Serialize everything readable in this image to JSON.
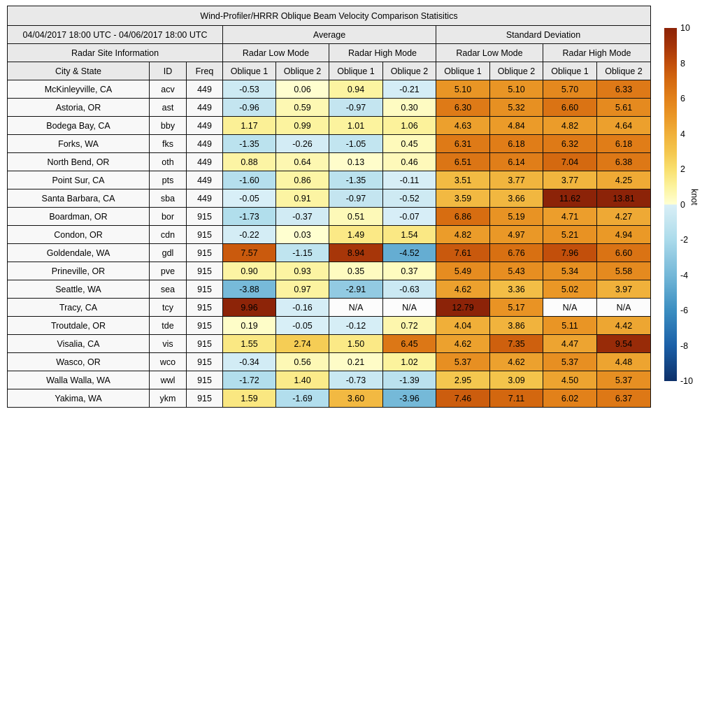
{
  "title": "Wind-Profiler/HRRR Oblique Beam Velocity Comparison Statisitics",
  "date_range": "04/04/2017 18:00 UTC - 04/06/2017 18:00 UTC",
  "headers": {
    "average": "Average",
    "standard_deviation": "Standard Deviation",
    "radar_site_information": "Radar Site Information",
    "radar_low_mode": "Radar Low Mode",
    "radar_high_mode": "Radar High Mode",
    "city_state": "City & State",
    "id": "ID",
    "freq": "Freq",
    "oblique1": "Oblique 1",
    "oblique2": "Oblique 2"
  },
  "colorbar": {
    "label": "knot",
    "min": -10,
    "max": 10,
    "ticks": [
      10,
      8,
      6,
      4,
      2,
      0,
      -2,
      -4,
      -6,
      -8,
      -10
    ],
    "gradient": [
      [
        -10,
        "#0d3069"
      ],
      [
        -8,
        "#1b60a8"
      ],
      [
        -6,
        "#3b8ec1"
      ],
      [
        -4,
        "#74b8d8"
      ],
      [
        -3,
        "#8fc8e1"
      ],
      [
        -2,
        "#abdbeb"
      ],
      [
        -1,
        "#c3e5f0"
      ],
      [
        -0.001,
        "#d9eff7"
      ],
      [
        0.001,
        "#ffffd2"
      ],
      [
        1,
        "#fcf39e"
      ],
      [
        2,
        "#f9df6d"
      ],
      [
        3,
        "#f4c64d"
      ],
      [
        4,
        "#f0b03a"
      ],
      [
        5,
        "#ea9726"
      ],
      [
        6,
        "#e2811a"
      ],
      [
        7,
        "#d56a10"
      ],
      [
        8,
        "#c14e0b"
      ],
      [
        9,
        "#a53409"
      ],
      [
        10,
        "#8c2308"
      ]
    ],
    "na_color": "#fcfcfc"
  },
  "chart_data": {
    "type": "heatmap",
    "title": "Wind-Profiler/HRRR Oblique Beam Velocity Comparison Statisitics",
    "period": "04/04/2017 18:00 UTC - 04/06/2017 18:00 UTC",
    "unit": "knot",
    "color_scale_range": [
      -10,
      10
    ],
    "value_columns": [
      "Average / Radar Low Mode / Oblique 1",
      "Average / Radar Low Mode / Oblique 2",
      "Average / Radar High Mode / Oblique 1",
      "Average / Radar High Mode / Oblique 2",
      "Standard Deviation / Radar Low Mode / Oblique 1",
      "Standard Deviation / Radar Low Mode / Oblique 2",
      "Standard Deviation / Radar High Mode / Oblique 1",
      "Standard Deviation / Radar High Mode / Oblique 2"
    ],
    "rows": [
      {
        "city": "McKinleyville, CA",
        "id": "acv",
        "freq": "449",
        "values": [
          "-0.53",
          "0.06",
          "0.94",
          "-0.21",
          "5.10",
          "5.10",
          "5.70",
          "6.33"
        ]
      },
      {
        "city": "Astoria, OR",
        "id": "ast",
        "freq": "449",
        "values": [
          "-0.96",
          "0.59",
          "-0.97",
          "0.30",
          "6.30",
          "5.32",
          "6.60",
          "5.61"
        ]
      },
      {
        "city": "Bodega Bay, CA",
        "id": "bby",
        "freq": "449",
        "values": [
          "1.17",
          "0.99",
          "1.01",
          "1.06",
          "4.63",
          "4.84",
          "4.82",
          "4.64"
        ]
      },
      {
        "city": "Forks, WA",
        "id": "fks",
        "freq": "449",
        "values": [
          "-1.35",
          "-0.26",
          "-1.05",
          "0.45",
          "6.31",
          "6.18",
          "6.32",
          "6.18"
        ]
      },
      {
        "city": "North Bend, OR",
        "id": "oth",
        "freq": "449",
        "values": [
          "0.88",
          "0.64",
          "0.13",
          "0.46",
          "6.51",
          "6.14",
          "7.04",
          "6.38"
        ]
      },
      {
        "city": "Point Sur, CA",
        "id": "pts",
        "freq": "449",
        "values": [
          "-1.60",
          "0.86",
          "-1.35",
          "-0.11",
          "3.51",
          "3.77",
          "3.77",
          "4.25"
        ]
      },
      {
        "city": "Santa Barbara, CA",
        "id": "sba",
        "freq": "449",
        "values": [
          "-0.05",
          "0.91",
          "-0.97",
          "-0.52",
          "3.59",
          "3.66",
          "11.62",
          "13.81"
        ]
      },
      {
        "city": "Boardman, OR",
        "id": "bor",
        "freq": "915",
        "values": [
          "-1.73",
          "-0.37",
          "0.51",
          "-0.07",
          "6.86",
          "5.19",
          "4.71",
          "4.27"
        ]
      },
      {
        "city": "Condon, OR",
        "id": "cdn",
        "freq": "915",
        "values": [
          "-0.22",
          "0.03",
          "1.49",
          "1.54",
          "4.82",
          "4.97",
          "5.21",
          "4.94"
        ]
      },
      {
        "city": "Goldendale, WA",
        "id": "gdl",
        "freq": "915",
        "values": [
          "7.57",
          "-1.15",
          "8.94",
          "-4.52",
          "7.61",
          "6.76",
          "7.96",
          "6.60"
        ]
      },
      {
        "city": "Prineville, OR",
        "id": "pve",
        "freq": "915",
        "values": [
          "0.90",
          "0.93",
          "0.35",
          "0.37",
          "5.49",
          "5.43",
          "5.34",
          "5.58"
        ]
      },
      {
        "city": "Seattle, WA",
        "id": "sea",
        "freq": "915",
        "values": [
          "-3.88",
          "0.97",
          "-2.91",
          "-0.63",
          "4.62",
          "3.36",
          "5.02",
          "3.97"
        ]
      },
      {
        "city": "Tracy, CA",
        "id": "tcy",
        "freq": "915",
        "values": [
          "9.96",
          "-0.16",
          "N/A",
          "N/A",
          "12.79",
          "5.17",
          "N/A",
          "N/A"
        ]
      },
      {
        "city": "Troutdale, OR",
        "id": "tde",
        "freq": "915",
        "values": [
          "0.19",
          "-0.05",
          "-0.12",
          "0.72",
          "4.04",
          "3.86",
          "5.11",
          "4.42"
        ]
      },
      {
        "city": "Visalia, CA",
        "id": "vis",
        "freq": "915",
        "values": [
          "1.55",
          "2.74",
          "1.50",
          "6.45",
          "4.62",
          "7.35",
          "4.47",
          "9.54"
        ]
      },
      {
        "city": "Wasco, OR",
        "id": "wco",
        "freq": "915",
        "values": [
          "-0.34",
          "0.56",
          "0.21",
          "1.02",
          "5.37",
          "4.62",
          "5.37",
          "4.48"
        ]
      },
      {
        "city": "Walla Walla, WA",
        "id": "wwl",
        "freq": "915",
        "values": [
          "-1.72",
          "1.40",
          "-0.73",
          "-1.39",
          "2.95",
          "3.09",
          "4.50",
          "5.37"
        ]
      },
      {
        "city": "Yakima, WA",
        "id": "ykm",
        "freq": "915",
        "values": [
          "1.59",
          "-1.69",
          "3.60",
          "-3.96",
          "7.46",
          "7.11",
          "6.02",
          "6.37"
        ]
      }
    ]
  }
}
